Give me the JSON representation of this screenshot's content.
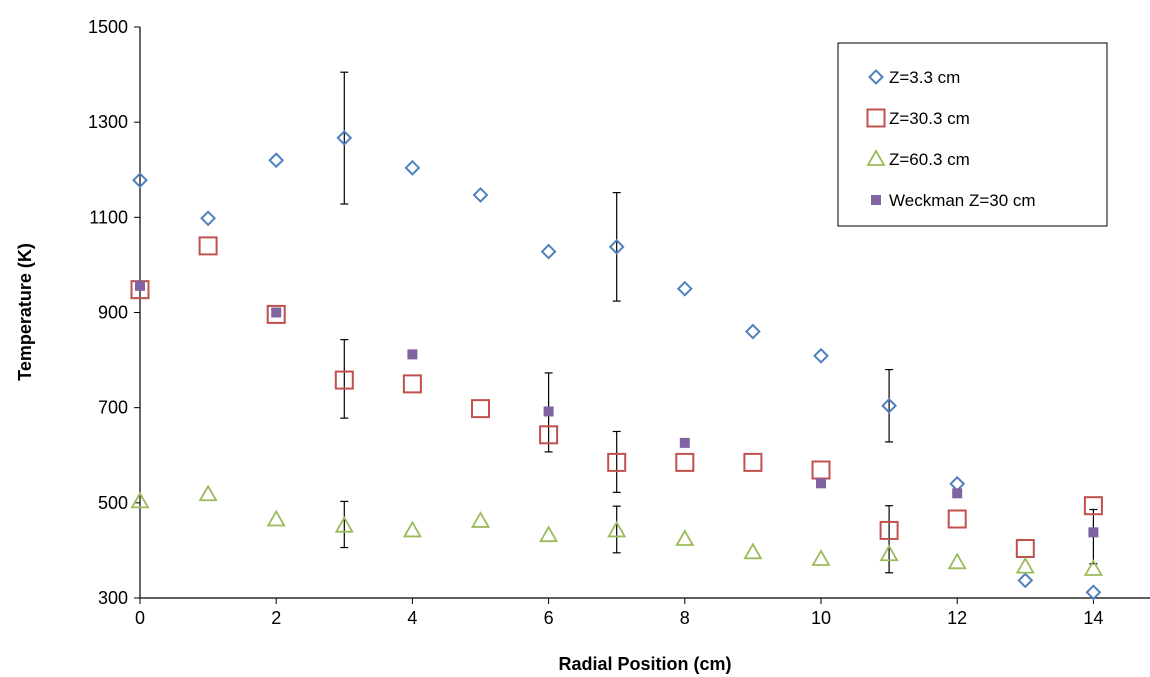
{
  "chart_data": {
    "type": "scatter",
    "title": "",
    "xlabel": "Radial Position (cm)",
    "ylabel": "Temperature (K)",
    "xlim": [
      0,
      15
    ],
    "ylim": [
      300,
      1500
    ],
    "xticks": [
      0,
      2,
      4,
      6,
      8,
      10,
      12,
      14
    ],
    "yticks": [
      300,
      500,
      700,
      900,
      1100,
      1300,
      1500
    ],
    "x_tick_labels": [
      "0",
      "2",
      "4",
      "6",
      "8",
      "10",
      "12",
      "14"
    ],
    "y_tick_labels": [
      "300",
      "500",
      "700",
      "900",
      "1100",
      "1300",
      "1500"
    ],
    "grid": false,
    "legend_position": "top-right",
    "series": [
      {
        "name": "Z=3.3 cm",
        "marker": "diamond-open",
        "color": "#4f81bd",
        "points": [
          {
            "x": 0,
            "y": 1178
          },
          {
            "x": 1,
            "y": 1098
          },
          {
            "x": 2,
            "y": 1220
          },
          {
            "x": 3,
            "y": 1267
          },
          {
            "x": 4,
            "y": 1204
          },
          {
            "x": 5,
            "y": 1147
          },
          {
            "x": 6,
            "y": 1028
          },
          {
            "x": 7,
            "y": 1038
          },
          {
            "x": 8,
            "y": 950
          },
          {
            "x": 9,
            "y": 860
          },
          {
            "x": 10,
            "y": 809
          },
          {
            "x": 11,
            "y": 704
          },
          {
            "x": 12,
            "y": 540
          },
          {
            "x": 13,
            "y": 337
          },
          {
            "x": 14,
            "y": 312
          }
        ]
      },
      {
        "name": "Z=30.3 cm",
        "marker": "square-open",
        "color": "#c0504d",
        "points": [
          {
            "x": 0,
            "y": 948
          },
          {
            "x": 1,
            "y": 1040
          },
          {
            "x": 2,
            "y": 896
          },
          {
            "x": 3,
            "y": 758
          },
          {
            "x": 4,
            "y": 750
          },
          {
            "x": 5,
            "y": 698
          },
          {
            "x": 6,
            "y": 643
          },
          {
            "x": 7,
            "y": 585
          },
          {
            "x": 8,
            "y": 585
          },
          {
            "x": 9,
            "y": 585
          },
          {
            "x": 10,
            "y": 569
          },
          {
            "x": 11,
            "y": 442
          },
          {
            "x": 12,
            "y": 466
          },
          {
            "x": 13,
            "y": 404
          },
          {
            "x": 14,
            "y": 494
          }
        ]
      },
      {
        "name": "Z=60.3 cm",
        "marker": "triangle-open",
        "color": "#9bbb59",
        "points": [
          {
            "x": 0,
            "y": 503
          },
          {
            "x": 1,
            "y": 518
          },
          {
            "x": 2,
            "y": 465
          },
          {
            "x": 3,
            "y": 452
          },
          {
            "x": 4,
            "y": 442
          },
          {
            "x": 5,
            "y": 462
          },
          {
            "x": 6,
            "y": 432
          },
          {
            "x": 7,
            "y": 442
          },
          {
            "x": 8,
            "y": 424
          },
          {
            "x": 9,
            "y": 396
          },
          {
            "x": 10,
            "y": 382
          },
          {
            "x": 11,
            "y": 392
          },
          {
            "x": 12,
            "y": 375
          },
          {
            "x": 13,
            "y": 366
          },
          {
            "x": 14,
            "y": 361
          }
        ]
      },
      {
        "name": "Weckman Z=30 cm",
        "marker": "square-filled",
        "color": "#8064a2",
        "points": [
          {
            "x": 0,
            "y": 956
          },
          {
            "x": 2,
            "y": 900
          },
          {
            "x": 4,
            "y": 812
          },
          {
            "x": 6,
            "y": 692
          },
          {
            "x": 8,
            "y": 626
          },
          {
            "x": 10,
            "y": 541
          },
          {
            "x": 12,
            "y": 520
          },
          {
            "x": 14,
            "y": 438
          }
        ]
      }
    ],
    "error_bars": [
      {
        "series": "Z=3.3 cm",
        "x": 3,
        "low": 1128,
        "high": 1405
      },
      {
        "series": "Z=3.3 cm",
        "x": 7,
        "low": 924,
        "high": 1152
      },
      {
        "series": "Z=3.3 cm",
        "x": 11,
        "low": 628,
        "high": 780
      },
      {
        "series": "Z=30.3 cm",
        "x": 3,
        "low": 678,
        "high": 843
      },
      {
        "series": "Z=30.3 cm",
        "x": 7,
        "low": 522,
        "high": 650
      },
      {
        "series": "Z=30.3 cm",
        "x": 11,
        "low": 353,
        "high": 494
      },
      {
        "series": "Z=60.3 cm",
        "x": 3,
        "low": 406,
        "high": 503
      },
      {
        "series": "Z=60.3 cm",
        "x": 7,
        "low": 395,
        "high": 493
      },
      {
        "series": "Weckman Z=30 cm",
        "x": 6,
        "low": 607,
        "high": 773
      },
      {
        "series": "Weckman Z=30 cm",
        "x": 14,
        "low": 372,
        "high": 486
      }
    ]
  }
}
